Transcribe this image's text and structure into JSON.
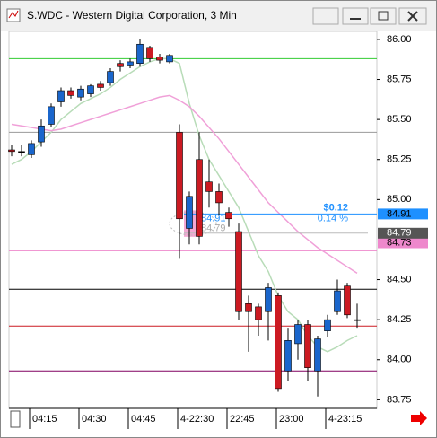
{
  "window": {
    "title": "S.WDC - Western Digital Corporation, 3 Min"
  },
  "chart_data": {
    "type": "candlestick",
    "categories": [
      null,
      null,
      "04:15",
      null,
      null,
      null,
      null,
      "04:30",
      null,
      null,
      null,
      null,
      "04:45",
      null,
      null,
      null,
      null,
      "4-22:30",
      null,
      null,
      null,
      null,
      "22:45",
      null,
      null,
      null,
      null,
      "23:00",
      null,
      null,
      null,
      null,
      "4-23:15",
      null,
      null,
      null
    ],
    "open": [
      85.31,
      85.3,
      85.28,
      85.36,
      85.47,
      85.61,
      85.68,
      85.64,
      85.66,
      85.72,
      85.73,
      85.85,
      85.84,
      85.85,
      85.95,
      85.89,
      85.86,
      85.42,
      84.82,
      85.25,
      85.11,
      85.05,
      84.92,
      84.8,
      84.35,
      84.33,
      84.3,
      84.4,
      83.93,
      84.1,
      84.22,
      83.93,
      84.18,
      84.3,
      84.46,
      84.25
    ],
    "high": [
      85.34,
      85.34,
      85.37,
      85.5,
      85.6,
      85.7,
      85.7,
      85.71,
      85.72,
      85.74,
      85.82,
      85.87,
      85.88,
      86.0,
      85.96,
      85.91,
      85.91,
      85.47,
      85.05,
      85.42,
      85.25,
      85.1,
      84.95,
      84.85,
      84.4,
      84.35,
      84.48,
      84.42,
      84.2,
      84.25,
      84.25,
      84.15,
      84.28,
      84.5,
      84.48,
      84.35
    ],
    "low": [
      85.27,
      85.27,
      85.26,
      85.33,
      85.45,
      85.58,
      85.63,
      85.62,
      85.64,
      85.68,
      85.71,
      85.8,
      85.82,
      85.83,
      85.86,
      85.85,
      85.85,
      84.63,
      84.72,
      84.72,
      84.95,
      84.9,
      84.83,
      84.25,
      84.05,
      84.15,
      84.12,
      83.8,
      83.87,
      84.0,
      83.87,
      83.77,
      84.14,
      84.28,
      84.26,
      84.2
    ],
    "close": [
      85.3,
      85.3,
      85.35,
      85.46,
      85.58,
      85.68,
      85.65,
      85.69,
      85.71,
      85.7,
      85.8,
      85.83,
      85.86,
      85.97,
      85.88,
      85.87,
      85.9,
      84.88,
      85.02,
      84.77,
      85.05,
      84.98,
      84.88,
      84.3,
      84.3,
      84.25,
      84.45,
      83.82,
      84.12,
      84.22,
      83.95,
      84.13,
      84.25,
      84.43,
      84.28,
      84.25
    ],
    "up_color": "#1a66cc",
    "down_color": "#cc1a22",
    "overlays": [
      {
        "color": "#b8dcb8",
        "values": [
          85.22,
          85.25,
          85.3,
          85.36,
          85.42,
          85.5,
          85.55,
          85.6,
          85.63,
          85.66,
          85.7,
          85.75,
          85.79,
          85.83,
          85.86,
          85.88,
          85.88,
          85.85,
          85.6,
          85.4,
          85.25,
          85.15,
          85.05,
          84.95,
          84.8,
          84.65,
          84.55,
          84.4,
          84.3,
          84.25,
          84.15,
          84.08,
          84.05,
          84.08,
          84.12,
          84.15
        ]
      },
      {
        "color": "#f0a0d8",
        "values": [
          85.47,
          85.46,
          85.45,
          85.44,
          85.43,
          85.44,
          85.46,
          85.48,
          85.5,
          85.52,
          85.54,
          85.56,
          85.58,
          85.6,
          85.62,
          85.64,
          85.65,
          85.62,
          85.58,
          85.52,
          85.45,
          85.38,
          85.3,
          85.22,
          85.14,
          85.06,
          84.98,
          84.92,
          84.86,
          84.8,
          84.75,
          84.7,
          84.66,
          84.62,
          84.58,
          84.54
        ]
      }
    ],
    "levels": [
      {
        "value": 85.88,
        "color": "#33cc33"
      },
      {
        "value": 85.42,
        "color": "#999999"
      },
      {
        "value": 84.96,
        "color": "#ee88cc"
      },
      {
        "value": 84.68,
        "color": "#ee88cc"
      },
      {
        "value": 84.44,
        "color": "#000000"
      },
      {
        "value": 84.21,
        "color": "#cc1a22"
      },
      {
        "value": 83.93,
        "color": "#800060"
      }
    ],
    "price_labels": [
      {
        "value": 84.91,
        "color": "#1e90ff"
      },
      {
        "value": 84.79,
        "color": "#555555"
      },
      {
        "value": 84.73,
        "color": "#ee88cc"
      }
    ],
    "annotations": [
      "$0.12",
      "0.14 %"
    ],
    "ylim": [
      83.696,
      86.05
    ],
    "yticks": [
      {
        "value": 86,
        "label": "86.00"
      },
      {
        "value": 85.75,
        "label": "85.75"
      },
      {
        "value": 85.5,
        "label": "85.50"
      },
      {
        "value": 85.25,
        "label": "85.25"
      },
      {
        "value": 85,
        "label": "85.00"
      },
      {
        "value": 84.5,
        "label": "84.50"
      },
      {
        "value": 84.25,
        "label": "84.25"
      },
      {
        "value": 84,
        "label": "84.00"
      },
      {
        "value": 83.75,
        "label": "83.75"
      }
    ]
  }
}
